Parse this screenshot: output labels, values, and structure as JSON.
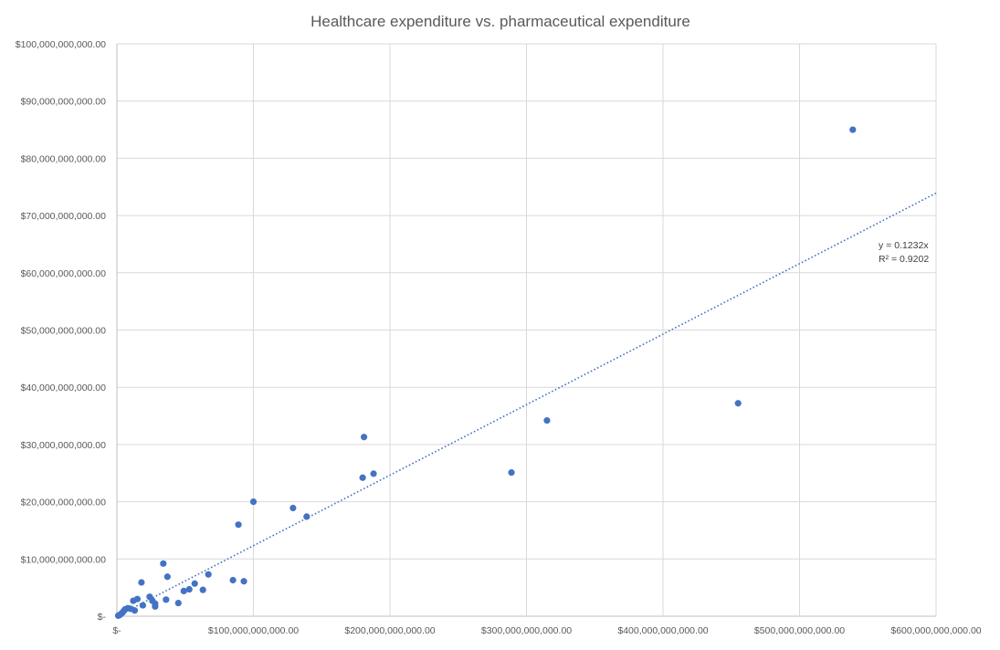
{
  "chart_data": {
    "type": "scatter",
    "title": "Healthcare expenditure vs. pharmaceutical expenditure",
    "xlabel": "",
    "ylabel": "",
    "xlim": [
      0,
      600000000000
    ],
    "ylim": [
      0,
      100000000000
    ],
    "grid": true,
    "legend": "none",
    "x_tick_labels": [
      "$-",
      "$100,000,000,000.00",
      "$200,000,000,000.00",
      "$300,000,000,000.00",
      "$400,000,000,000.00",
      "$500,000,000,000.00",
      "$600,000,000,000.00"
    ],
    "x_ticks": [
      0,
      100000000000,
      200000000000,
      300000000000,
      400000000000,
      500000000000,
      600000000000
    ],
    "y_tick_labels": [
      "$-",
      "$10,000,000,000.00",
      "$20,000,000,000.00",
      "$30,000,000,000.00",
      "$40,000,000,000.00",
      "$50,000,000,000.00",
      "$60,000,000,000.00",
      "$70,000,000,000.00",
      "$80,000,000,000.00",
      "$90,000,000,000.00",
      "$100,000,000,000.00"
    ],
    "y_ticks": [
      0,
      10000000000,
      20000000000,
      30000000000,
      40000000000,
      50000000000,
      60000000000,
      70000000000,
      80000000000,
      90000000000,
      100000000000
    ],
    "point_color": "#4472C4",
    "trendline_color": "#4472C4",
    "series": [
      {
        "points": [
          [
            539000000000,
            85000000000
          ],
          [
            455000000000,
            37200000000
          ],
          [
            315000000000,
            34200000000
          ],
          [
            289000000000,
            25100000000
          ],
          [
            181000000000,
            31300000000
          ],
          [
            180000000000,
            24200000000
          ],
          [
            188000000000,
            24900000000
          ],
          [
            139000000000,
            17400000000
          ],
          [
            129000000000,
            18900000000
          ],
          [
            100000000000,
            20000000000
          ],
          [
            89000000000,
            16000000000
          ],
          [
            93000000000,
            6100000000
          ],
          [
            85000000000,
            6300000000
          ],
          [
            67000000000,
            7300000000
          ],
          [
            63000000000,
            4600000000
          ],
          [
            57000000000,
            5700000000
          ],
          [
            53000000000,
            4700000000
          ],
          [
            49000000000,
            4400000000
          ],
          [
            45000000000,
            2300000000
          ],
          [
            37000000000,
            6900000000
          ],
          [
            34000000000,
            9200000000
          ],
          [
            36000000000,
            2900000000
          ],
          [
            28000000000,
            1700000000
          ],
          [
            28000000000,
            2200000000
          ],
          [
            26000000000,
            2700000000
          ],
          [
            24000000000,
            3400000000
          ],
          [
            18000000000,
            5900000000
          ],
          [
            19000000000,
            1900000000
          ],
          [
            15000000000,
            3000000000
          ],
          [
            12000000000,
            2700000000
          ],
          [
            13000000000,
            1000000000
          ],
          [
            10000000000,
            1300000000
          ],
          [
            8000000000,
            1400000000
          ],
          [
            6000000000,
            1200000000
          ],
          [
            5000000000,
            900000000
          ],
          [
            4000000000,
            600000000
          ],
          [
            3000000000,
            400000000
          ],
          [
            2000000000,
            200000000
          ],
          [
            1000000000,
            100000000
          ]
        ]
      }
    ],
    "trendline": {
      "equation": "y = 0.1232x",
      "r_squared": "R² = 0.9202",
      "slope": 0.1232
    }
  }
}
